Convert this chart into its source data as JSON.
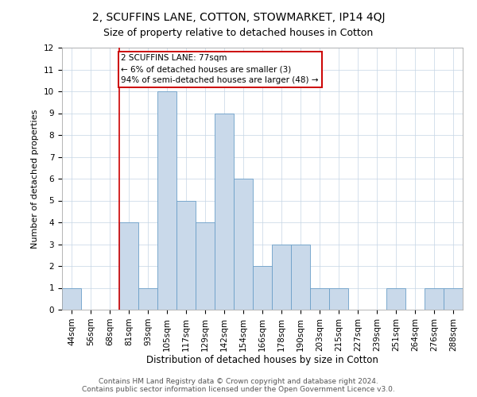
{
  "title": "2, SCUFFINS LANE, COTTON, STOWMARKET, IP14 4QJ",
  "subtitle": "Size of property relative to detached houses in Cotton",
  "xlabel": "Distribution of detached houses by size in Cotton",
  "ylabel": "Number of detached properties",
  "categories": [
    "44sqm",
    "56sqm",
    "68sqm",
    "81sqm",
    "93sqm",
    "105sqm",
    "117sqm",
    "129sqm",
    "142sqm",
    "154sqm",
    "166sqm",
    "178sqm",
    "190sqm",
    "203sqm",
    "215sqm",
    "227sqm",
    "239sqm",
    "251sqm",
    "264sqm",
    "276sqm",
    "288sqm"
  ],
  "values": [
    1,
    0,
    0,
    4,
    1,
    10,
    5,
    4,
    9,
    6,
    2,
    3,
    3,
    1,
    1,
    0,
    0,
    1,
    0,
    1,
    1
  ],
  "bar_color": "#c9d9ea",
  "bar_edge_color": "#6b9fc8",
  "vline_color": "#cc0000",
  "annotation_box_text": "2 SCUFFINS LANE: 77sqm\n← 6% of detached houses are smaller (3)\n94% of semi-detached houses are larger (48) →",
  "annotation_box_color": "#cc0000",
  "ylim": [
    0,
    12
  ],
  "yticks": [
    0,
    1,
    2,
    3,
    4,
    5,
    6,
    7,
    8,
    9,
    10,
    11,
    12
  ],
  "grid_color": "#c5d5e5",
  "background_color": "#ffffff",
  "footer_text": "Contains HM Land Registry data © Crown copyright and database right 2024.\nContains public sector information licensed under the Open Government Licence v3.0.",
  "title_fontsize": 10,
  "subtitle_fontsize": 9,
  "xlabel_fontsize": 8.5,
  "ylabel_fontsize": 8,
  "tick_fontsize": 7.5,
  "annotation_fontsize": 7.5,
  "footer_fontsize": 6.5
}
